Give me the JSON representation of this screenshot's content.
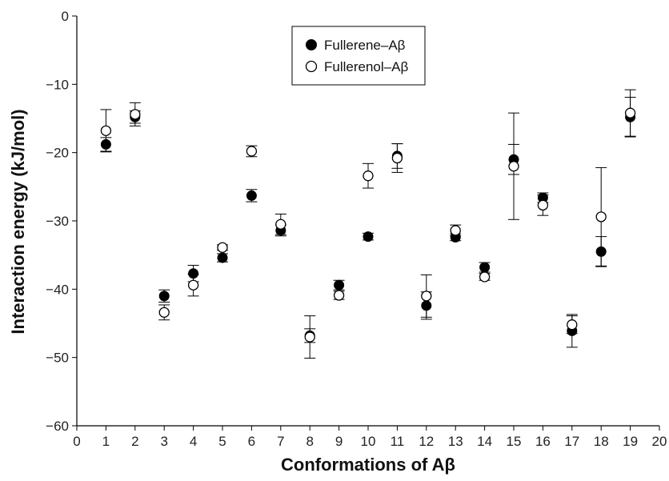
{
  "chart_data": {
    "type": "scatter",
    "xlabel": "Conformations of Aβ",
    "ylabel": "Interaction energy (kJ/mol)",
    "xlim": [
      0,
      20
    ],
    "ylim": [
      -60,
      0
    ],
    "x_ticks": [
      0,
      1,
      2,
      3,
      4,
      5,
      6,
      7,
      8,
      9,
      10,
      11,
      12,
      13,
      14,
      15,
      16,
      17,
      18,
      19,
      20
    ],
    "y_ticks": [
      0,
      -10,
      -20,
      -30,
      -40,
      -50,
      -60
    ],
    "x_tick_labels": [
      "0",
      "1",
      "2",
      "3",
      "4",
      "5",
      "6",
      "7",
      "8",
      "9",
      "10",
      "11",
      "12",
      "13",
      "14",
      "15",
      "16",
      "17",
      "18",
      "19",
      "20"
    ],
    "y_tick_labels": [
      "0",
      "−10",
      "−20",
      "−30",
      "−40",
      "−50",
      "−60"
    ],
    "legend_position": "top-center",
    "grid": false,
    "series": [
      {
        "name": "Fullerene–Aβ",
        "marker": "filled-circle",
        "color": "#000000",
        "x": [
          1,
          2,
          3,
          4,
          5,
          6,
          7,
          8,
          9,
          10,
          11,
          12,
          13,
          14,
          15,
          16,
          17,
          18,
          19
        ],
        "y": [
          -18.8,
          -14.8,
          -41.0,
          -37.7,
          -35.4,
          -26.3,
          -31.4,
          -46.8,
          -39.4,
          -32.3,
          -20.5,
          -42.4,
          -32.4,
          -36.8,
          -21.0,
          -26.6,
          -46.1,
          -34.5,
          -14.8
        ],
        "err": [
          1.0,
          0.9,
          0.9,
          1.2,
          0.6,
          0.9,
          0.8,
          1.0,
          0.7,
          0.5,
          1.8,
          2.0,
          0.5,
          0.7,
          2.2,
          0.7,
          2.4,
          2.2,
          2.9
        ]
      },
      {
        "name": "Fullerenol–Aβ",
        "marker": "open-circle",
        "color": "#000000",
        "x": [
          1,
          2,
          3,
          4,
          5,
          6,
          7,
          8,
          9,
          10,
          11,
          12,
          13,
          14,
          15,
          16,
          17,
          18,
          19
        ],
        "y": [
          -16.8,
          -14.4,
          -43.4,
          -39.4,
          -33.9,
          -19.8,
          -30.5,
          -47.0,
          -40.9,
          -23.4,
          -20.8,
          -41.0,
          -31.4,
          -38.2,
          -22.0,
          -27.7,
          -45.2,
          -29.4,
          -14.2
        ],
        "err": [
          3.1,
          1.7,
          1.1,
          1.6,
          0.4,
          0.8,
          1.5,
          3.1,
          0.6,
          1.8,
          2.1,
          3.1,
          0.8,
          0.5,
          7.8,
          1.5,
          1.3,
          7.2,
          3.4
        ]
      }
    ]
  }
}
